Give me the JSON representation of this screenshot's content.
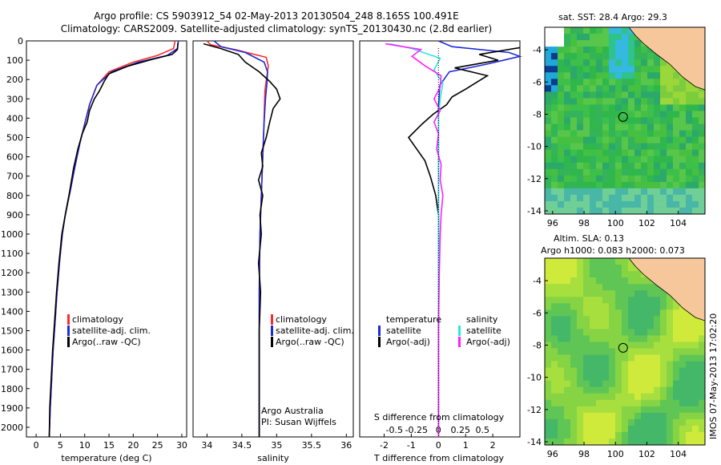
{
  "header": {
    "line1": "Argo profile: CS 5903912_54 02-May-2013 20130504_248 8.165S 100.491E",
    "line2": "Climatology: CARS2009. Satellite-adjusted climatology: synTS_20130430.nc (2.8d earlier)"
  },
  "colors": {
    "climatology": "#ff2a2a",
    "satellite": "#1f2bd6",
    "argo": "#000000",
    "salinity_satellite": "#2ee6e6",
    "salinity_argo": "#ff20ff",
    "land": "#f6c79a"
  },
  "chart_data": [
    {
      "type": "line",
      "xlabel": "temperature (deg C)",
      "ylabel": "",
      "xlim": [
        -2,
        31
      ],
      "ylim": [
        2050,
        0
      ],
      "xticks": [
        "0",
        "5",
        "10",
        "15",
        "20",
        "25",
        "30"
      ],
      "yticks": [
        "0",
        "100",
        "200",
        "300",
        "400",
        "500",
        "600",
        "700",
        "800",
        "900",
        "1000",
        "1100",
        "1200",
        "1300",
        "1400",
        "1500",
        "1600",
        "1700",
        "1800",
        "1900",
        "2000"
      ],
      "legend": [
        "climatology",
        "satellite-adj. clim.",
        "Argo(..raw -QC)"
      ],
      "series": [
        {
          "name": "climatology",
          "color": "#ff2a2a",
          "points": [
            [
              28.6,
              0
            ],
            [
              28.3,
              40
            ],
            [
              25,
              75
            ],
            [
              20,
              110
            ],
            [
              15,
              160
            ],
            [
              12.5,
              230
            ],
            [
              11,
              330
            ],
            [
              10,
              430
            ],
            [
              9,
              530
            ],
            [
              8,
              650
            ],
            [
              7,
              780
            ],
            [
              6,
              900
            ],
            [
              5.4,
              1000
            ],
            [
              4.8,
              1150
            ],
            [
              4.3,
              1300
            ],
            [
              3.9,
              1450
            ],
            [
              3.5,
              1600
            ],
            [
              3.2,
              1750
            ],
            [
              2.9,
              1900
            ],
            [
              2.7,
              2050
            ]
          ]
        },
        {
          "name": "satellite-adj. clim.",
          "color": "#1f2bd6",
          "points": [
            [
              29.3,
              0
            ],
            [
              29.1,
              40
            ],
            [
              27,
              75
            ],
            [
              21,
              110
            ],
            [
              15.5,
              160
            ],
            [
              12.5,
              230
            ],
            [
              11,
              330
            ],
            [
              10,
              430
            ],
            [
              9,
              530
            ],
            [
              8,
              650
            ],
            [
              7,
              780
            ],
            [
              6,
              900
            ],
            [
              5.4,
              1000
            ],
            [
              4.8,
              1150
            ],
            [
              4.3,
              1300
            ],
            [
              3.9,
              1450
            ],
            [
              3.5,
              1600
            ],
            [
              3.2,
              1750
            ],
            [
              2.9,
              1900
            ],
            [
              2.7,
              2050
            ]
          ]
        },
        {
          "name": "Argo(..raw -QC)",
          "color": "#000000",
          "points": [
            [
              29.2,
              10
            ],
            [
              29.1,
              45
            ],
            [
              28,
              70
            ],
            [
              24,
              95
            ],
            [
              19,
              130
            ],
            [
              15,
              170
            ],
            [
              14,
              210
            ],
            [
              13,
              260
            ],
            [
              12,
              300
            ],
            [
              11,
              360
            ],
            [
              10.5,
              420
            ],
            [
              9.5,
              480
            ],
            [
              8.6,
              560
            ],
            [
              7.7,
              660
            ],
            [
              6.9,
              780
            ],
            [
              6,
              900
            ],
            [
              5.3,
              1000
            ],
            [
              4.7,
              1150
            ],
            [
              4.2,
              1300
            ],
            [
              3.8,
              1450
            ],
            [
              3.4,
              1600
            ],
            [
              3.1,
              1750
            ],
            [
              2.8,
              1900
            ],
            [
              2.7,
              2050
            ]
          ]
        }
      ]
    },
    {
      "type": "line",
      "xlabel": "salinity",
      "ylabel": "",
      "xlim": [
        33.8,
        36.1
      ],
      "ylim": [
        2050,
        0
      ],
      "xticks": [
        "34",
        "34.5",
        "35",
        "35.5",
        "36"
      ],
      "legend": [
        "climatology",
        "satellite-adj. clim.",
        "Argo(..raw -QC)"
      ],
      "annotation": [
        "Argo Australia",
        "PI: Susan Wijffels"
      ],
      "series": [
        {
          "name": "climatology",
          "color": "#ff2a2a",
          "points": [
            [
              34.0,
              0
            ],
            [
              34.05,
              20
            ],
            [
              34.4,
              45
            ],
            [
              34.85,
              85
            ],
            [
              34.88,
              130
            ],
            [
              34.86,
              180
            ],
            [
              34.83,
              260
            ],
            [
              34.82,
              400
            ],
            [
              34.8,
              600
            ],
            [
              34.78,
              800
            ],
            [
              34.76,
              1000
            ],
            [
              34.75,
              1300
            ],
            [
              34.75,
              1600
            ],
            [
              34.75,
              2050
            ]
          ]
        },
        {
          "name": "satellite-adj. clim.",
          "color": "#1f2bd6",
          "points": [
            [
              34.1,
              0
            ],
            [
              34.2,
              30
            ],
            [
              34.55,
              60
            ],
            [
              34.82,
              110
            ],
            [
              34.87,
              160
            ],
            [
              34.86,
              220
            ],
            [
              34.84,
              300
            ],
            [
              34.82,
              420
            ],
            [
              34.8,
              600
            ],
            [
              34.78,
              800
            ],
            [
              34.76,
              1000
            ],
            [
              34.75,
              1300
            ],
            [
              34.75,
              1600
            ],
            [
              34.75,
              2050
            ]
          ]
        },
        {
          "name": "Argo(..raw -QC)",
          "color": "#000000",
          "points": [
            [
              33.95,
              15
            ],
            [
              34.2,
              40
            ],
            [
              34.45,
              70
            ],
            [
              34.55,
              110
            ],
            [
              34.75,
              160
            ],
            [
              34.9,
              210
            ],
            [
              35.0,
              250
            ],
            [
              35.05,
              300
            ],
            [
              34.95,
              350
            ],
            [
              34.9,
              420
            ],
            [
              34.85,
              500
            ],
            [
              34.78,
              580
            ],
            [
              34.8,
              650
            ],
            [
              34.74,
              720
            ],
            [
              34.8,
              800
            ],
            [
              34.76,
              900
            ],
            [
              34.78,
              1000
            ],
            [
              34.74,
              1150
            ],
            [
              34.77,
              1300
            ],
            [
              34.75,
              1500
            ],
            [
              34.75,
              1700
            ],
            [
              34.75,
              2050
            ]
          ]
        }
      ]
    },
    {
      "type": "line",
      "xlabel": "T difference from climatology",
      "top_label": "S difference from climatology",
      "xlim": [
        -2.9,
        3.0
      ],
      "ylim": [
        2050,
        0
      ],
      "xticks": [
        "-2",
        "-1",
        "0",
        "1",
        "2"
      ],
      "sticks": [
        "-0.5",
        "-0.25",
        "0",
        "0.25",
        "0.5"
      ],
      "legend_temperature": {
        "title": "temperature",
        "items": [
          "satellite",
          "Argo(-adj)"
        ]
      },
      "legend_salinity": {
        "title": "salinity",
        "items": [
          "satellite",
          "Argo(-adj)"
        ]
      },
      "series": [
        {
          "name": "temperature satellite",
          "color": "#1f2bd6",
          "points": [
            [
              0,
              0
            ],
            [
              0.5,
              30
            ],
            [
              2.6,
              60
            ],
            [
              3.0,
              80
            ],
            [
              1.8,
              120
            ],
            [
              0.4,
              160
            ],
            [
              0.05,
              230
            ],
            [
              0,
              350
            ],
            [
              0,
              600
            ],
            [
              0,
              1000
            ],
            [
              0,
              1500
            ],
            [
              0,
              2050
            ]
          ]
        },
        {
          "name": "temperature Argo(-adj)",
          "color": "#000000",
          "points": [
            [
              3.0,
              35
            ],
            [
              1.5,
              70
            ],
            [
              2.2,
              100
            ],
            [
              0.6,
              140
            ],
            [
              1.8,
              180
            ],
            [
              1.0,
              250
            ],
            [
              0.5,
              290
            ],
            [
              0.3,
              330
            ],
            [
              -0.2,
              380
            ],
            [
              -0.6,
              430
            ],
            [
              -1.1,
              500
            ],
            [
              -0.8,
              560
            ],
            [
              -0.5,
              620
            ],
            [
              -0.3,
              700
            ],
            [
              -0.1,
              800
            ],
            [
              0,
              900
            ],
            [
              0,
              1000
            ],
            [
              0,
              1200
            ],
            [
              0,
              1500
            ],
            [
              0,
              2050
            ]
          ]
        },
        {
          "name": "salinity satellite",
          "color": "#2ee6e6",
          "sal": true,
          "points": [
            [
              -0.55,
              15
            ],
            [
              -0.3,
              40
            ],
            [
              0.02,
              90
            ],
            [
              -0.05,
              150
            ],
            [
              0.05,
              220
            ],
            [
              0.02,
              300
            ],
            [
              0,
              400
            ],
            [
              0,
              700
            ],
            [
              0,
              1000
            ],
            [
              0,
              1500
            ],
            [
              0,
              2050
            ]
          ]
        },
        {
          "name": "salinity Argo(-adj)",
          "color": "#ff20ff",
          "sal": true,
          "points": [
            [
              -0.6,
              15
            ],
            [
              -0.2,
              45
            ],
            [
              -0.3,
              80
            ],
            [
              -0.15,
              130
            ],
            [
              0.03,
              180
            ],
            [
              0.02,
              240
            ],
            [
              -0.05,
              300
            ],
            [
              0.02,
              360
            ],
            [
              -0.05,
              420
            ],
            [
              0.0,
              480
            ],
            [
              -0.02,
              560
            ],
            [
              0.03,
              640
            ],
            [
              0.02,
              720
            ],
            [
              0.05,
              800
            ],
            [
              0.03,
              900
            ],
            [
              0.02,
              1000
            ],
            [
              0.01,
              1200
            ],
            [
              0,
              1500
            ],
            [
              0,
              2050
            ]
          ]
        }
      ]
    },
    {
      "type": "heatmap",
      "title": "sat. SST: 28.4  Argo: 29.3",
      "xlim": [
        95.5,
        105.7
      ],
      "ylim": [
        -14.2,
        -2.6
      ],
      "xticks": [
        "96",
        "98",
        "100",
        "102",
        "104"
      ],
      "yticks": [
        "-4",
        "-6",
        "-8",
        "-10",
        "-12",
        "-14"
      ],
      "argo_position": [
        100.49,
        -8.17
      ]
    },
    {
      "type": "heatmap",
      "title": "Altim. SLA: 0.13",
      "subtitle": "Argo h1000: 0.083 h2000: 0.073",
      "xlim": [
        95.5,
        105.7
      ],
      "ylim": [
        -14.2,
        -2.6
      ],
      "xticks": [
        "96",
        "98",
        "100",
        "102",
        "104"
      ],
      "yticks": [
        "-4",
        "-6",
        "-8",
        "-10",
        "-12",
        "-14"
      ],
      "argo_position": [
        100.49,
        -8.17
      ]
    }
  ],
  "footer": {
    "stamp": "IMOS 07-May-2013 17:02:20"
  }
}
